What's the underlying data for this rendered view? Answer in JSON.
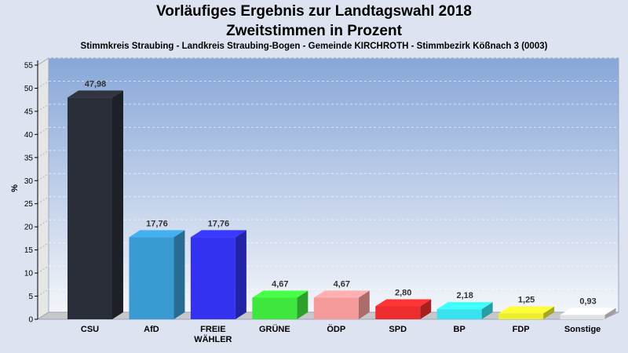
{
  "chart_data": {
    "type": "bar",
    "title": "Vorläufiges Ergebnis zur Landtagswahl 2018",
    "subtitle": "Zweitstimmen in Prozent",
    "caption": "Stimmkreis Straubing - Landkreis Straubing-Bogen - Gemeinde KIRCHROTH - Stimmbezirk Kößnach 3 (0003)",
    "ylabel": "%",
    "ylim": [
      0,
      55
    ],
    "yticks": [
      "0",
      "5",
      "10",
      "15",
      "20",
      "25",
      "30",
      "35",
      "40",
      "45",
      "50",
      "55"
    ],
    "grid": true,
    "categories": [
      "CSU",
      "AfD",
      "FREIE WÄHLER",
      "GRÜNE",
      "ÖDP",
      "SPD",
      "BP",
      "FDP",
      "Sonstige"
    ],
    "values": [
      47.98,
      17.76,
      17.76,
      4.67,
      4.67,
      2.8,
      2.18,
      1.25,
      0.93
    ],
    "value_labels": [
      "47,98",
      "17,76",
      "17,76",
      "4,67",
      "4,67",
      "2,80",
      "2,18",
      "1,25",
      "0,93"
    ],
    "colors": [
      "#2a2e38",
      "#3a9ad2",
      "#3232f0",
      "#3ee63e",
      "#f59a9a",
      "#ee2e2e",
      "#38e2ee",
      "#eeee30",
      "#e2e2e2"
    ]
  }
}
